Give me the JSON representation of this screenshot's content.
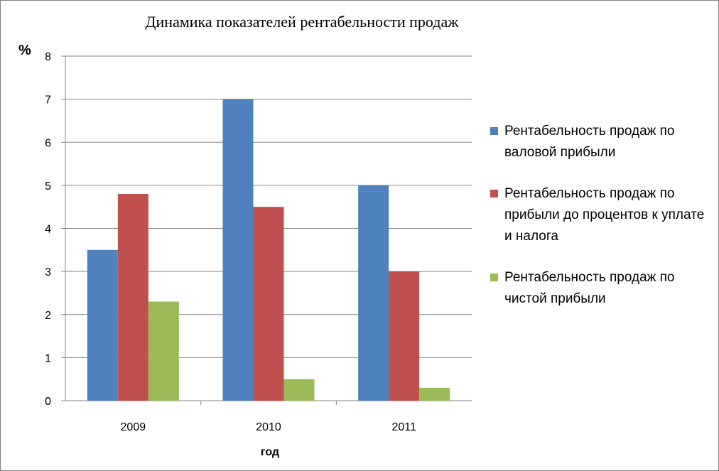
{
  "chart_data": {
    "type": "bar",
    "title": "Динамика показателей рентабельности продаж",
    "ylabel": "%",
    "xlabel": "год",
    "categories": [
      "2009",
      "2010",
      "2011"
    ],
    "ylim": [
      0,
      8
    ],
    "yticks": [
      0,
      1,
      2,
      3,
      4,
      5,
      6,
      7,
      8
    ],
    "grid": true,
    "legend_position": "right",
    "series": [
      {
        "name": "Рентабельность продаж по валовой прибыли",
        "color": "#4F81BD",
        "values": [
          3.5,
          7.0,
          5.0
        ]
      },
      {
        "name": "Рентабельность продаж по прибыли до процентов к уплате и налога",
        "color": "#C0504D",
        "values": [
          4.8,
          4.5,
          3.0
        ]
      },
      {
        "name": "Рентабельность продаж по чистой прибыли",
        "color": "#9BBB59",
        "values": [
          2.3,
          0.5,
          0.3
        ]
      }
    ]
  }
}
